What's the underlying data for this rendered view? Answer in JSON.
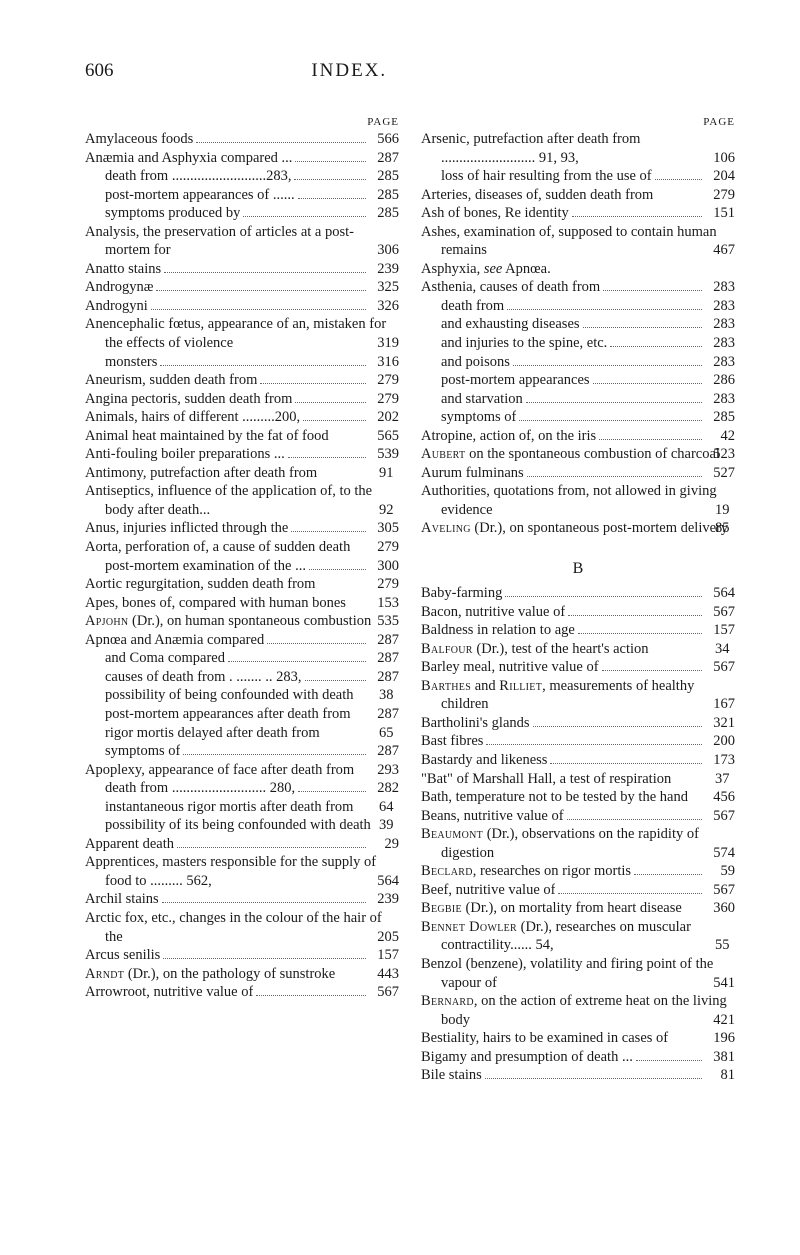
{
  "header": {
    "page_number": "606",
    "title": "INDEX."
  },
  "page_label": "PAGE",
  "section_B": "B",
  "left": [
    {
      "t": "Amylaceous foods",
      "p": "566"
    },
    {
      "t": "Anæmia and Asphyxia compared ...",
      "p": "287"
    },
    {
      "t": "death from ..........................283,",
      "p": "285",
      "indent": 1
    },
    {
      "t": "post-mortem appearances of ......",
      "p": "285",
      "indent": 1
    },
    {
      "t": "symptoms produced by",
      "p": "285",
      "indent": 1
    },
    {
      "t": "Analysis, the preservation of articles at a post-mortem for",
      "p": "306",
      "hang": true
    },
    {
      "t": "Anatto stains",
      "p": "239"
    },
    {
      "t": "Androgynæ",
      "p": "325"
    },
    {
      "t": "Androgyni",
      "p": "326"
    },
    {
      "t": "Anencephalic fœtus, appearance of an, mistaken for the effects of violence",
      "p": "319",
      "hang": true
    },
    {
      "t": "monsters",
      "p": "316",
      "indent": 1
    },
    {
      "t": "Aneurism, sudden death from",
      "p": "279"
    },
    {
      "t": "Angina pectoris, sudden death from",
      "p": "279"
    },
    {
      "t": "Animals, hairs of different .........200,",
      "p": "202"
    },
    {
      "t": "Animal heat maintained by the fat of food",
      "p": "565",
      "hang": true
    },
    {
      "t": "Anti-fouling boiler preparations ...",
      "p": "539"
    },
    {
      "t": "Antimony, putrefaction after death from",
      "p": "91",
      "hang": true
    },
    {
      "t": "Antiseptics, influence of the application of, to the body after death...",
      "p": "92",
      "hang": true
    },
    {
      "t": "Anus, injuries inflicted through the",
      "p": "305"
    },
    {
      "t": "Aorta, perforation of, a cause of sudden death",
      "p": "279",
      "hang": true
    },
    {
      "t": "post-mortem examination of the ...",
      "p": "300",
      "indent": 1
    },
    {
      "t": "Aortic regurgitation, sudden death from",
      "p": "279",
      "hang": true
    },
    {
      "t": "Apes, bones of, compared with human bones",
      "p": "153",
      "hang": true
    },
    {
      "t": "<span class=\"sc\">Apjohn</span> (Dr.), on human spontaneous combustion",
      "p": "535",
      "hang": true
    },
    {
      "t": "Apnœa and Anæmia compared",
      "p": "287"
    },
    {
      "t": "and Coma compared",
      "p": "287",
      "indent": 1
    },
    {
      "t": "causes of death from . ....... .. 283,",
      "p": "287",
      "indent": 1
    },
    {
      "t": "possibility of being confounded with death",
      "p": "38",
      "indent": 1,
      "hang2": true
    },
    {
      "t": "post-mortem appearances after death from",
      "p": "287",
      "indent": 1,
      "hang2": true
    },
    {
      "t": "rigor mortis delayed after death from",
      "p": "65",
      "indent": 1,
      "hang2": true
    },
    {
      "t": "symptoms of",
      "p": "287",
      "indent": 1
    },
    {
      "t": "Apoplexy, appearance of face after death from",
      "p": "293",
      "hang": true
    },
    {
      "t": "death from .......................... 280,",
      "p": "282",
      "indent": 1
    },
    {
      "t": "instantaneous rigor mortis after death from",
      "p": "64",
      "indent": 1,
      "hang2": true
    },
    {
      "t": "possibility of its being confounded with death",
      "p": "39",
      "indent": 1,
      "hang2": true
    },
    {
      "t": "Apparent death",
      "p": "29"
    },
    {
      "t": "Apprentices, masters responsible for the supply of food to ......... 562,",
      "p": "564",
      "hang": true
    },
    {
      "t": "Archil stains",
      "p": "239"
    },
    {
      "t": "Arctic fox, etc., changes in the colour of the hair of the",
      "p": "205",
      "hang": true
    },
    {
      "t": "Arcus senilis",
      "p": "157"
    },
    {
      "t": "<span class=\"sc\">Arndt</span> (Dr.), on the pathology of sunstroke",
      "p": "443",
      "hang": true
    },
    {
      "t": "Arrowroot, nutritive value of",
      "p": "567"
    }
  ],
  "right": [
    {
      "t": "Arsenic, putrefaction after death from .......................... 91, 93,",
      "p": "106",
      "hang": true
    },
    {
      "t": "loss of hair resulting from the use of",
      "p": "204",
      "indent": 1
    },
    {
      "t": "Arteries, diseases of, sudden death from",
      "p": "279",
      "hang": true
    },
    {
      "t": "Ash of bones, Re identity",
      "p": "151"
    },
    {
      "t": "Ashes, examination of, supposed to contain human remains",
      "p": "467",
      "hang": true
    },
    {
      "t": "Asphyxia, <em>see</em> Apnœa.",
      "p": "",
      "nodots": true
    },
    {
      "t": "Asthenia, causes of death from",
      "p": "283"
    },
    {
      "t": "death from",
      "p": "283",
      "indent": 1
    },
    {
      "t": "and exhausting diseases",
      "p": "283",
      "indent": 1
    },
    {
      "t": "and injuries to the spine, etc.",
      "p": "283",
      "indent": 1
    },
    {
      "t": "and poisons",
      "p": "283",
      "indent": 1
    },
    {
      "t": "post-mortem appearances",
      "p": "286",
      "indent": 1
    },
    {
      "t": "and starvation",
      "p": "283",
      "indent": 1
    },
    {
      "t": "symptoms of",
      "p": "285",
      "indent": 1
    },
    {
      "t": "Atropine, action of, on the iris",
      "p": "42"
    },
    {
      "t": "<span class=\"sc\">Aubert</span> on the spontaneous combustion of charcoal",
      "p": "523",
      "hang": true
    },
    {
      "t": "Aurum fulminans",
      "p": "527"
    },
    {
      "t": "Authorities, quotations from, not allowed in giving evidence",
      "p": "19",
      "hang": true
    },
    {
      "t": "<span class=\"sc\">Aveling</span> (Dr.), on spontaneous post-mortem delivery",
      "p": "85",
      "hang": true
    }
  ],
  "rightB": [
    {
      "t": "Baby-farming",
      "p": "564"
    },
    {
      "t": "Bacon, nutritive value of",
      "p": "567"
    },
    {
      "t": "Baldness in relation to age",
      "p": "157"
    },
    {
      "t": "<span class=\"sc\">Balfour</span> (Dr.), test of the heart's action",
      "p": "34",
      "hang": true
    },
    {
      "t": "Barley meal, nutritive value of",
      "p": "567"
    },
    {
      "t": "<span class=\"sc\">Barthes</span> and <span class=\"sc\">Rilliet</span>, measurements of healthy children",
      "p": "167",
      "hang": true
    },
    {
      "t": "Bartholini's glands",
      "p": "321"
    },
    {
      "t": "Bast fibres",
      "p": "200"
    },
    {
      "t": "Bastardy and likeness",
      "p": "173"
    },
    {
      "t": "\"Bat\" of Marshall Hall, a test of respiration",
      "p": "37",
      "hang": true
    },
    {
      "t": "Bath, temperature not to be tested by the hand",
      "p": "456",
      "hang": true
    },
    {
      "t": "Beans, nutritive value of",
      "p": "567"
    },
    {
      "t": "<span class=\"sc\">Beaumont</span> (Dr.), observations on the rapidity of digestion",
      "p": "574",
      "hang": true
    },
    {
      "t": "<span class=\"sc\">Beclard</span>, researches on rigor mortis",
      "p": "59"
    },
    {
      "t": "Beef, nutritive value of",
      "p": "567"
    },
    {
      "t": "<span class=\"sc\">Begbie</span> (Dr.), on mortality from heart disease",
      "p": "360",
      "hang": true
    },
    {
      "t": "<span class=\"sc\">Bennet Dowler</span> (Dr.), researches on muscular contractility...... 54,",
      "p": "55",
      "hang": true
    },
    {
      "t": "Benzol (benzene), volatility and firing point of the vapour of",
      "p": "541",
      "hang": true
    },
    {
      "t": "<span class=\"sc\">Bernard</span>, on the action of extreme heat on the living body",
      "p": "421",
      "hang": true
    },
    {
      "t": "Bestiality, hairs to be examined in cases of",
      "p": "196",
      "hang": true
    },
    {
      "t": "Bigamy and presumption of death ...",
      "p": "381"
    },
    {
      "t": "Bile stains",
      "p": "81"
    }
  ]
}
